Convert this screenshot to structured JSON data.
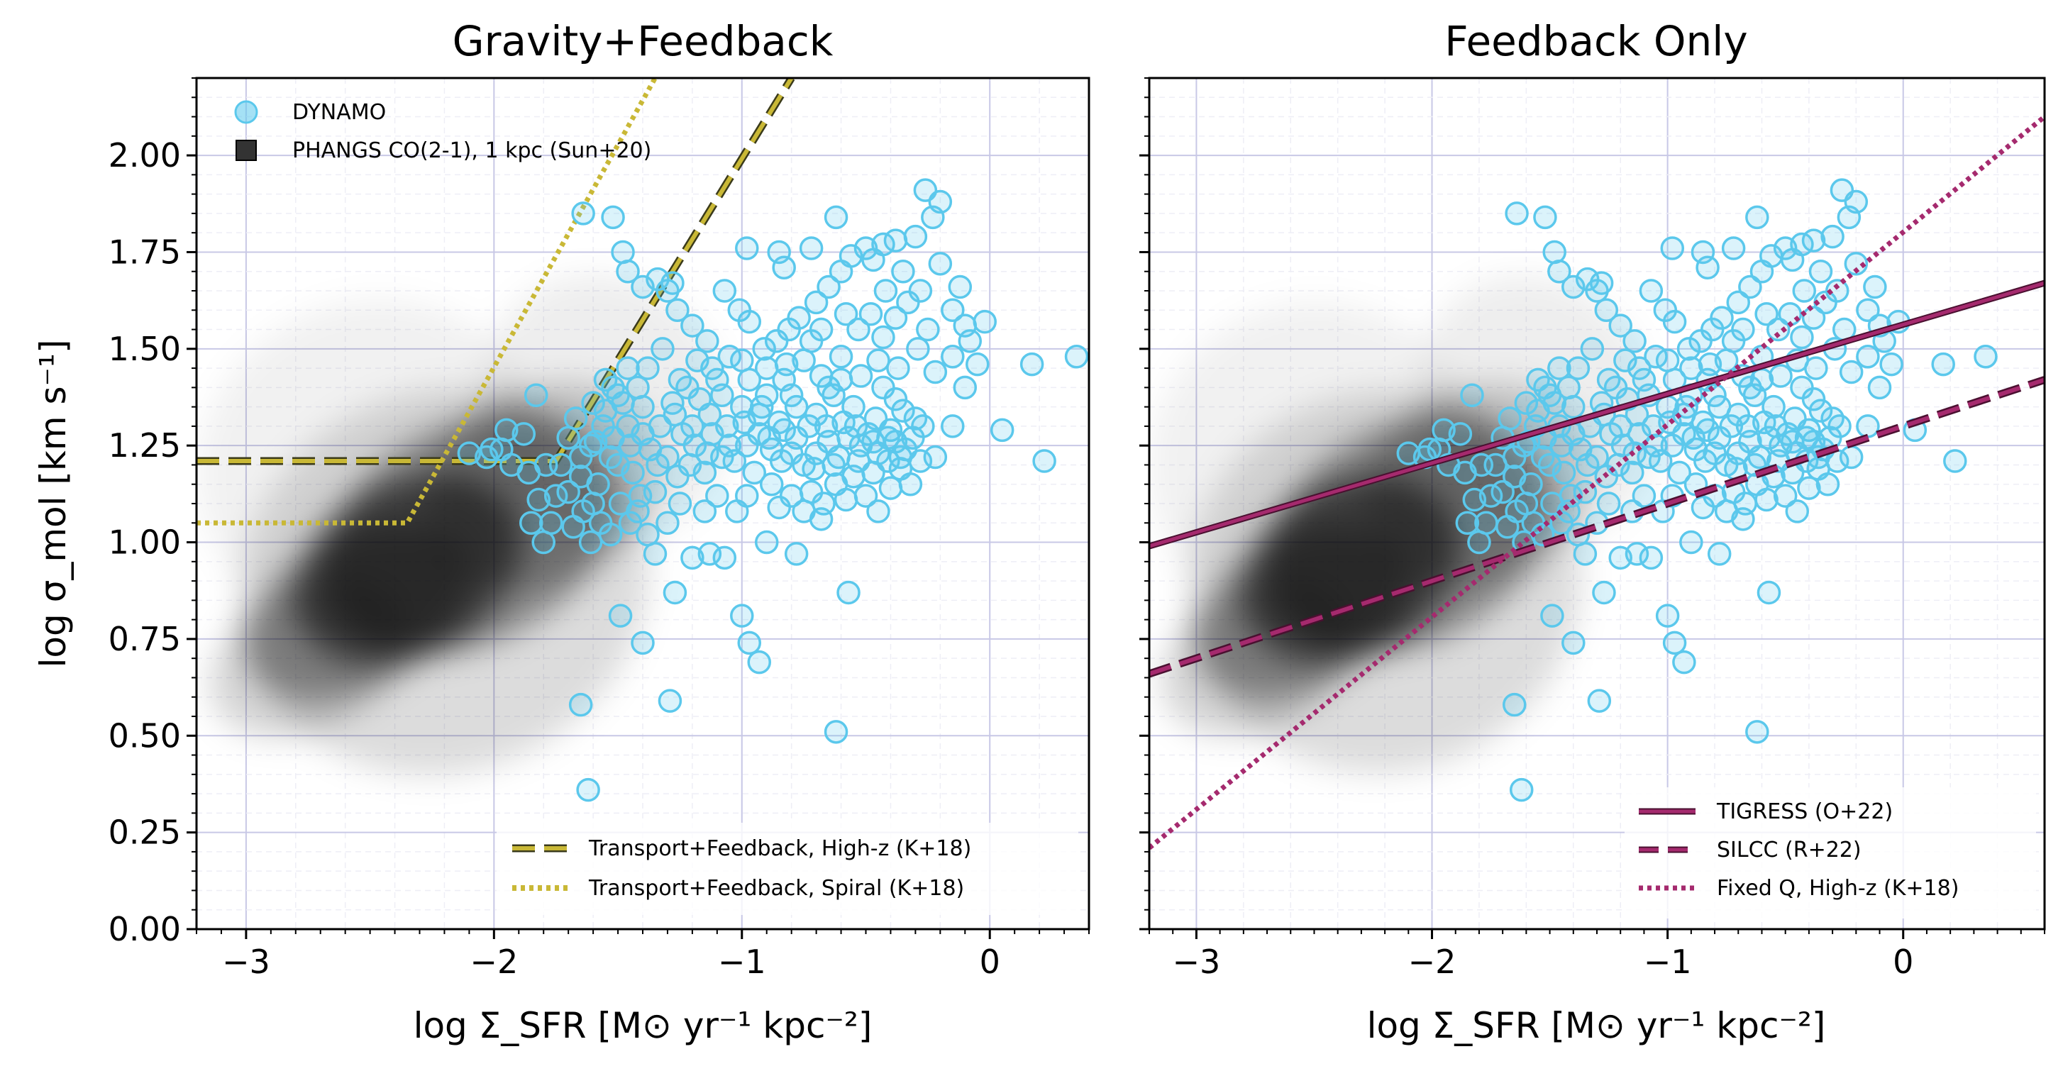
{
  "chart_data": [
    {
      "type": "scatter",
      "title": "Gravity+Feedback",
      "xlabel": "log Σ_SFR [M⊙ yr⁻¹ kpc⁻²]",
      "ylabel": "log σ_mol [km s⁻¹]",
      "xlim": [
        -3.2,
        0.4
      ],
      "ylim": [
        0.0,
        2.2
      ],
      "xticks": [
        "−3",
        "−2",
        "−1",
        "0"
      ],
      "yticks": [
        "0.00",
        "0.25",
        "0.50",
        "0.75",
        "1.00",
        "1.25",
        "1.50",
        "1.75",
        "2.00"
      ],
      "grid": true,
      "legend_upper": {
        "placement": "top-left",
        "entries": [
          {
            "label": "DYNAMO",
            "marker": "circle",
            "color": "#5bc8ec"
          },
          {
            "label": "PHANGS CO(2-1), 1 kpc (Sun+20)",
            "marker": "square",
            "color": "#333333"
          }
        ]
      },
      "legend_lower": {
        "placement": "bottom-right",
        "entries": [
          {
            "label": "Transport+Feedback, High-z (K+18)",
            "style": "dashed",
            "color": "#c9b836"
          },
          {
            "label": "Transport+Feedback, Spiral (K+18)",
            "style": "dotted",
            "color": "#c9b836"
          }
        ]
      },
      "lines": [
        {
          "name": "Transport+Feedback, High-z (K+18)",
          "style": "dashed",
          "color": "#c9b836",
          "x": [
            -3.2,
            -1.75,
            -0.8
          ],
          "y": [
            1.21,
            1.21,
            2.2
          ]
        },
        {
          "name": "Transport+Feedback, Spiral (K+18)",
          "style": "dotted",
          "color": "#c9b836",
          "x": [
            -3.2,
            -2.35,
            -1.35
          ],
          "y": [
            1.05,
            1.05,
            2.2
          ]
        }
      ]
    },
    {
      "type": "scatter",
      "title": "Feedback Only",
      "xlabel": "log Σ_SFR [M⊙ yr⁻¹ kpc⁻²]",
      "xlim": [
        -3.2,
        0.6
      ],
      "ylim": [
        0.0,
        2.2
      ],
      "xticks": [
        "−3",
        "−2",
        "−1",
        "0"
      ],
      "grid": true,
      "legend_lower": {
        "placement": "bottom-right",
        "entries": [
          {
            "label": "TIGRESS (O+22)",
            "style": "solid",
            "color": "#a52a6e"
          },
          {
            "label": "SILCC (R+22)",
            "style": "dashed",
            "color": "#a52a6e"
          },
          {
            "label": "Fixed Q, High-z (K+18)",
            "style": "dotted",
            "color": "#a52a6e"
          }
        ]
      },
      "lines": [
        {
          "name": "TIGRESS (O+22)",
          "style": "solid",
          "color": "#a52a6e",
          "x": [
            -3.2,
            0.6
          ],
          "y": [
            0.99,
            1.67
          ]
        },
        {
          "name": "SILCC (R+22)",
          "style": "dashed",
          "color": "#a52a6e",
          "x": [
            -3.2,
            0.6
          ],
          "y": [
            0.66,
            1.42
          ]
        },
        {
          "name": "Fixed Q, High-z (K+18)",
          "style": "dotted",
          "color": "#a52a6e",
          "x": [
            -3.2,
            0.6
          ],
          "y": [
            0.21,
            2.1
          ]
        }
      ]
    }
  ],
  "dynamo_points": [
    [
      -1.62,
      0.36
    ],
    [
      -1.65,
      0.58
    ],
    [
      -0.62,
      0.51
    ],
    [
      -1.29,
      0.59
    ],
    [
      -1.4,
      0.74
    ],
    [
      -0.97,
      0.74
    ],
    [
      -0.93,
      0.69
    ],
    [
      -1.0,
      0.81
    ],
    [
      -1.49,
      0.81
    ],
    [
      -0.57,
      0.87
    ],
    [
      -1.27,
      0.87
    ],
    [
      -1.07,
      0.96
    ],
    [
      -0.78,
      0.97
    ],
    [
      -1.13,
      0.97
    ],
    [
      -0.9,
      1.0
    ],
    [
      -1.35,
      0.97
    ],
    [
      -1.2,
      0.96
    ],
    [
      -0.68,
      1.06
    ],
    [
      -1.42,
      1.08
    ],
    [
      -1.53,
      1.02
    ],
    [
      -1.61,
      1.0
    ],
    [
      -1.68,
      1.04
    ],
    [
      -1.77,
      1.05
    ],
    [
      -1.8,
      1.0
    ],
    [
      -2.1,
      1.23
    ],
    [
      -2.01,
      1.24
    ],
    [
      -1.93,
      1.2
    ],
    [
      -1.86,
      1.18
    ],
    [
      -1.83,
      1.38
    ],
    [
      -1.67,
      1.32
    ],
    [
      -1.55,
      1.34
    ],
    [
      -1.53,
      1.22
    ],
    [
      -1.59,
      1.26
    ],
    [
      -1.52,
      1.27
    ],
    [
      -1.73,
      1.2
    ],
    [
      -1.65,
      1.17
    ],
    [
      -1.7,
      1.13
    ],
    [
      -1.6,
      1.1
    ],
    [
      -1.49,
      1.1
    ],
    [
      -1.41,
      1.12
    ],
    [
      -1.35,
      1.13
    ],
    [
      -1.44,
      1.18
    ],
    [
      -1.34,
      1.2
    ],
    [
      -1.3,
      1.22
    ],
    [
      -1.26,
      1.17
    ],
    [
      -1.21,
      1.2
    ],
    [
      -1.14,
      1.23
    ],
    [
      -1.08,
      1.22
    ],
    [
      -1.03,
      1.21
    ],
    [
      -0.98,
      1.25
    ],
    [
      -0.93,
      1.28
    ],
    [
      -0.88,
      1.24
    ],
    [
      -0.84,
      1.21
    ],
    [
      -0.8,
      1.23
    ],
    [
      -0.75,
      1.2
    ],
    [
      -0.7,
      1.23
    ],
    [
      -0.65,
      1.26
    ],
    [
      -0.61,
      1.22
    ],
    [
      -0.57,
      1.27
    ],
    [
      -0.52,
      1.25
    ],
    [
      -0.49,
      1.28
    ],
    [
      -0.45,
      1.23
    ],
    [
      -0.41,
      1.21
    ],
    [
      -0.38,
      1.26
    ],
    [
      -0.34,
      1.24
    ],
    [
      -0.3,
      1.32
    ],
    [
      -0.22,
      1.22
    ],
    [
      -0.55,
      1.35
    ],
    [
      -0.63,
      1.38
    ],
    [
      -0.7,
      1.33
    ],
    [
      -0.78,
      1.35
    ],
    [
      -0.85,
      1.31
    ],
    [
      -0.93,
      1.33
    ],
    [
      -1.0,
      1.35
    ],
    [
      -1.06,
      1.3
    ],
    [
      -1.13,
      1.33
    ],
    [
      -1.2,
      1.3
    ],
    [
      -1.27,
      1.33
    ],
    [
      -1.33,
      1.3
    ],
    [
      -1.4,
      1.35
    ],
    [
      -1.46,
      1.3
    ],
    [
      -1.52,
      1.4
    ],
    [
      -1.46,
      1.45
    ],
    [
      -1.38,
      1.45
    ],
    [
      -1.32,
      1.5
    ],
    [
      -1.25,
      1.42
    ],
    [
      -1.17,
      1.37
    ],
    [
      -1.1,
      1.42
    ],
    [
      -1.05,
      1.48
    ],
    [
      -0.97,
      1.42
    ],
    [
      -0.9,
      1.38
    ],
    [
      -0.83,
      1.42
    ],
    [
      -0.75,
      1.47
    ],
    [
      -0.68,
      1.43
    ],
    [
      -0.6,
      1.48
    ],
    [
      -0.52,
      1.43
    ],
    [
      -0.45,
      1.47
    ],
    [
      -0.37,
      1.45
    ],
    [
      -0.29,
      1.5
    ],
    [
      -0.22,
      1.44
    ],
    [
      -0.15,
      1.48
    ],
    [
      -0.08,
      1.52
    ],
    [
      -0.02,
      1.57
    ],
    [
      0.05,
      1.29
    ],
    [
      -0.15,
      1.3
    ],
    [
      -0.1,
      1.4
    ],
    [
      -0.05,
      1.46
    ],
    [
      0.17,
      1.46
    ],
    [
      0.35,
      1.48
    ],
    [
      0.22,
      1.21
    ],
    [
      -0.26,
      1.91
    ],
    [
      -0.2,
      1.88
    ],
    [
      -0.23,
      1.84
    ],
    [
      -0.3,
      1.79
    ],
    [
      -0.38,
      1.78
    ],
    [
      -0.43,
      1.77
    ],
    [
      -0.5,
      1.76
    ],
    [
      -0.56,
      1.74
    ],
    [
      -0.6,
      1.7
    ],
    [
      -0.65,
      1.66
    ],
    [
      -0.7,
      1.62
    ],
    [
      -0.77,
      1.58
    ],
    [
      -0.81,
      1.55
    ],
    [
      -0.86,
      1.52
    ],
    [
      -0.91,
      1.5
    ],
    [
      -0.97,
      1.57
    ],
    [
      -1.01,
      1.6
    ],
    [
      -1.07,
      1.65
    ],
    [
      -1.14,
      1.52
    ],
    [
      -1.2,
      1.56
    ],
    [
      -1.26,
      1.6
    ],
    [
      -1.28,
      1.67
    ],
    [
      -1.34,
      1.68
    ],
    [
      -1.46,
      1.7
    ],
    [
      -1.64,
      1.85
    ],
    [
      -1.48,
      1.75
    ],
    [
      -1.52,
      1.84
    ],
    [
      -1.4,
      1.66
    ],
    [
      -1.3,
      1.65
    ],
    [
      -0.98,
      1.76
    ],
    [
      -0.85,
      1.75
    ],
    [
      -0.83,
      1.71
    ],
    [
      -0.72,
      1.76
    ],
    [
      -0.62,
      1.84
    ],
    [
      -0.47,
      1.73
    ],
    [
      -0.42,
      1.65
    ],
    [
      -0.35,
      1.7
    ],
    [
      -0.33,
      1.62
    ],
    [
      -0.28,
      1.65
    ],
    [
      -0.25,
      1.55
    ],
    [
      -0.2,
      1.72
    ],
    [
      -0.15,
      1.6
    ],
    [
      -0.12,
      1.66
    ],
    [
      -0.1,
      1.56
    ],
    [
      -0.68,
      1.55
    ],
    [
      -0.72,
      1.52
    ],
    [
      -0.58,
      1.59
    ],
    [
      -0.53,
      1.55
    ],
    [
      -0.48,
      1.59
    ],
    [
      -0.43,
      1.53
    ],
    [
      -0.38,
      1.58
    ],
    [
      -0.82,
      1.46
    ],
    [
      -0.9,
      1.45
    ],
    [
      -1.0,
      1.47
    ],
    [
      -1.12,
      1.45
    ],
    [
      -1.18,
      1.47
    ],
    [
      -1.5,
      1.38
    ],
    [
      -1.55,
      1.42
    ],
    [
      -1.6,
      1.36
    ],
    [
      -1.4,
      1.28
    ],
    [
      -1.37,
      1.24
    ],
    [
      -1.12,
      1.28
    ],
    [
      -1.05,
      1.25
    ],
    [
      -0.95,
      1.18
    ],
    [
      -0.88,
      1.15
    ],
    [
      -0.8,
      1.12
    ],
    [
      -0.75,
      1.08
    ],
    [
      -0.72,
      1.13
    ],
    [
      -0.67,
      1.1
    ],
    [
      -0.62,
      1.15
    ],
    [
      -0.58,
      1.11
    ],
    [
      -0.55,
      1.17
    ],
    [
      -0.5,
      1.12
    ],
    [
      -0.47,
      1.18
    ],
    [
      -0.45,
      1.08
    ],
    [
      -0.4,
      1.14
    ],
    [
      -0.36,
      1.19
    ],
    [
      -0.32,
      1.15
    ],
    [
      -0.28,
      1.21
    ],
    [
      -1.15,
      1.08
    ],
    [
      -1.1,
      1.12
    ],
    [
      -1.02,
      1.08
    ],
    [
      -0.98,
      1.12
    ],
    [
      -1.25,
      1.1
    ],
    [
      -1.3,
      1.05
    ],
    [
      -1.38,
      1.02
    ],
    [
      -1.45,
      1.05
    ],
    [
      -1.57,
      1.05
    ],
    [
      -1.64,
      1.08
    ],
    [
      -1.75,
      1.12
    ],
    [
      -1.82,
      1.11
    ],
    [
      -1.85,
      1.05
    ],
    [
      -1.79,
      1.2
    ],
    [
      -1.65,
      1.22
    ],
    [
      -1.58,
      1.15
    ],
    [
      -1.5,
      1.2
    ],
    [
      -1.45,
      1.25
    ],
    [
      -0.85,
      1.09
    ],
    [
      -0.78,
      1.27
    ],
    [
      -0.73,
      1.3
    ],
    [
      -0.66,
      1.3
    ],
    [
      -0.59,
      1.31
    ],
    [
      -0.54,
      1.3
    ],
    [
      -0.46,
      1.32
    ],
    [
      -0.4,
      1.29
    ],
    [
      -0.35,
      1.34
    ],
    [
      -0.43,
      1.4
    ],
    [
      -0.38,
      1.37
    ],
    [
      -0.6,
      1.42
    ],
    [
      -0.65,
      1.4
    ],
    [
      -0.8,
      1.38
    ],
    [
      -0.92,
      1.35
    ],
    [
      -1.08,
      1.38
    ],
    [
      -1.22,
      1.4
    ],
    [
      -1.28,
      1.36
    ],
    [
      -1.42,
      1.4
    ],
    [
      -1.48,
      1.36
    ],
    [
      -1.56,
      1.3
    ],
    [
      -1.61,
      1.25
    ],
    [
      -1.7,
      1.27
    ],
    [
      -1.88,
      1.28
    ],
    [
      -1.97,
      1.24
    ],
    [
      -2.03,
      1.22
    ],
    [
      -1.95,
      1.29
    ],
    [
      -1.15,
      1.18
    ],
    [
      -1.19,
      1.25
    ],
    [
      -1.24,
      1.28
    ],
    [
      -0.99,
      1.31
    ],
    [
      -0.89,
      1.27
    ],
    [
      -0.83,
      1.29
    ],
    [
      -0.71,
      1.19
    ],
    [
      -0.63,
      1.2
    ],
    [
      -0.53,
      1.21
    ],
    [
      -0.47,
      1.26
    ],
    [
      -0.41,
      1.27
    ],
    [
      -0.36,
      1.22
    ],
    [
      -0.31,
      1.27
    ],
    [
      -0.27,
      1.3
    ]
  ],
  "phangs_cloud": {
    "color": "#000000",
    "blobs": [
      {
        "x": -2.35,
        "y": 0.93,
        "sx": 0.35,
        "sy": 0.16,
        "w": 1.0
      },
      {
        "x": -2.1,
        "y": 1.02,
        "sx": 0.45,
        "sy": 0.2,
        "w": 0.7
      },
      {
        "x": -2.55,
        "y": 0.82,
        "sx": 0.35,
        "sy": 0.14,
        "w": 0.6
      },
      {
        "x": -1.8,
        "y": 1.15,
        "sx": 0.35,
        "sy": 0.18,
        "w": 0.35
      },
      {
        "x": -2.75,
        "y": 0.7,
        "sx": 0.3,
        "sy": 0.13,
        "w": 0.3
      },
      {
        "x": -2.2,
        "y": 0.9,
        "sx": 0.6,
        "sy": 0.35,
        "w": 0.25
      },
      {
        "x": -1.55,
        "y": 1.35,
        "sx": 0.35,
        "sy": 0.25,
        "w": 0.12
      },
      {
        "x": -2.5,
        "y": 1.2,
        "sx": 0.5,
        "sy": 0.3,
        "w": 0.1
      }
    ]
  }
}
